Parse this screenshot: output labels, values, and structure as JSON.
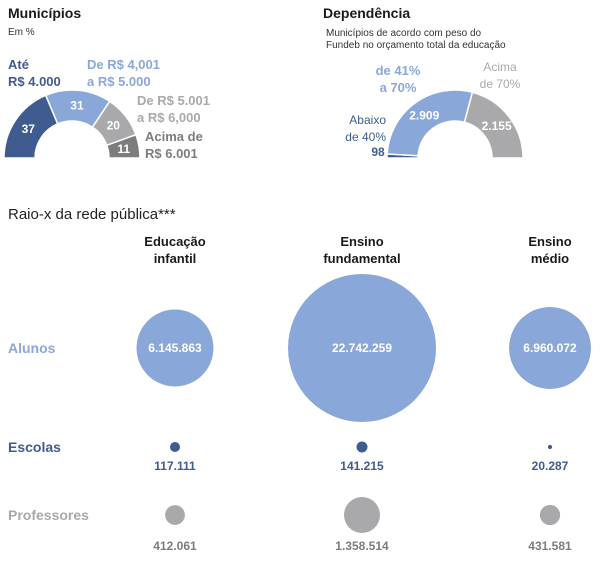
{
  "colors": {
    "dark_blue": "#3f5b8f",
    "mid_blue": "#8aa7d9",
    "light_gray": "#a9a9ab",
    "dark_gray": "#7c7c7e",
    "text_dark": "#1a1a1a"
  },
  "chart_data": [
    {
      "type": "pie",
      "subtype": "half-donut",
      "title": "Municípios",
      "subtitle": "Em %",
      "slices": [
        {
          "label": "Até R$ 4.000",
          "value": 37
        },
        {
          "label": "De R$ 4,001 a R$ 5.000",
          "value": 31
        },
        {
          "label": "De R$ 5.001 a R$ 6,000",
          "value": 20
        },
        {
          "label": "Acima de R$ 6.001",
          "value": 11
        }
      ],
      "label_lines": {
        "s0": [
          "Até",
          "R$ 4.000"
        ],
        "s1": [
          "De R$ 4,001",
          "a R$ 5.000"
        ],
        "s2": [
          "De R$ 5.001",
          "a R$ 6,000"
        ],
        "s3": [
          "Acima de",
          "R$ 6.001"
        ]
      },
      "colors": [
        "#3f5b8f",
        "#8aa7d9",
        "#a9a9ab",
        "#7c7c7e"
      ]
    },
    {
      "type": "pie",
      "subtype": "half-donut",
      "title": "Dependência",
      "subtitle_lines": [
        "Municípios de acordo com peso do",
        "Fundeb no orçamento total da educação"
      ],
      "slices": [
        {
          "label": "Abaixo de 40%",
          "value": 98
        },
        {
          "label": "de 41% a 70%",
          "value": 2909
        },
        {
          "label": "Acima de 70%",
          "value": 2155
        }
      ],
      "value_labels": [
        "98",
        "2.909",
        "2.155"
      ],
      "label_lines": {
        "s0": [
          "Abaixo",
          "de 40%"
        ],
        "s1": [
          "de 41%",
          "a 70%"
        ],
        "s2": [
          "Acima",
          "de 70%"
        ]
      },
      "colors": [
        "#3f5b8f",
        "#8aa7d9",
        "#a9a9ab"
      ]
    },
    {
      "type": "bubble",
      "title": "Raio-x da rede pública***",
      "columns": [
        [
          "Educação",
          "infantil"
        ],
        [
          "Ensino",
          "fundamental"
        ],
        [
          "Ensino",
          "médio"
        ]
      ],
      "rows": [
        {
          "name": "Alunos",
          "values": [
            6145863,
            22742259,
            6960072
          ],
          "labels": [
            "6.145.863",
            "22.742.259",
            "6.960.072"
          ],
          "color": "#8aa7d9"
        },
        {
          "name": "Escolas",
          "values": [
            117111,
            141215,
            20287
          ],
          "labels": [
            "117.111",
            "141.215",
            "20.287"
          ],
          "color": "#3f5b8f"
        },
        {
          "name": "Professores",
          "values": [
            412061,
            1358514,
            431581
          ],
          "labels": [
            "412.061",
            "1.358.514",
            "431.581"
          ],
          "color": "#a9a9ab"
        }
      ]
    }
  ]
}
